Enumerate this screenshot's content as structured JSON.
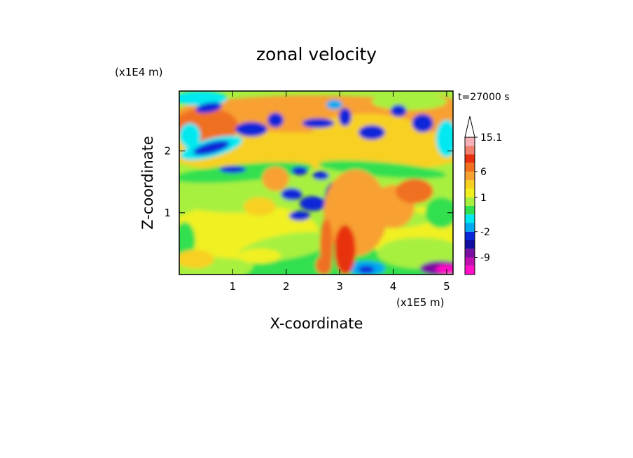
{
  "chart_data": {
    "type": "heatmap",
    "title": "zonal velocity",
    "xlabel": "X-coordinate",
    "ylabel": "Z-coordinate",
    "x_unit": "(x1E5 m)",
    "y_unit": "(x1E4 m)",
    "time_label": "t=27000 s",
    "x_ticks": [
      "1",
      "2",
      "3",
      "4",
      "5"
    ],
    "y_ticks": [
      "1",
      "2"
    ],
    "x_tick_values": [
      1,
      2,
      3,
      4,
      5
    ],
    "y_tick_values": [
      1,
      2
    ],
    "xlim": [
      0,
      5.12
    ],
    "ylim": [
      0,
      2.97
    ],
    "colorbar": {
      "labels": [
        "15.1",
        "6",
        "1",
        "-2",
        "-9"
      ],
      "label_values": [
        15.1,
        6,
        1,
        -2,
        -9
      ],
      "levels": [
        -15,
        -12,
        -9,
        -6,
        -4,
        -2,
        -1,
        0,
        0.5,
        1,
        2,
        4,
        6,
        8,
        10,
        12,
        15.1
      ],
      "colors": [
        "#ff10c8",
        "#c010b0",
        "#7a10a0",
        "#1010a0",
        "#0a28d8",
        "#00a8f0",
        "#00e8f0",
        "#30e050",
        "#a8f040",
        "#f0f020",
        "#f8d020",
        "#f8a030",
        "#f07020",
        "#e83010",
        "#f08070",
        "#f8b0b8"
      ],
      "extend_max": true
    }
  }
}
